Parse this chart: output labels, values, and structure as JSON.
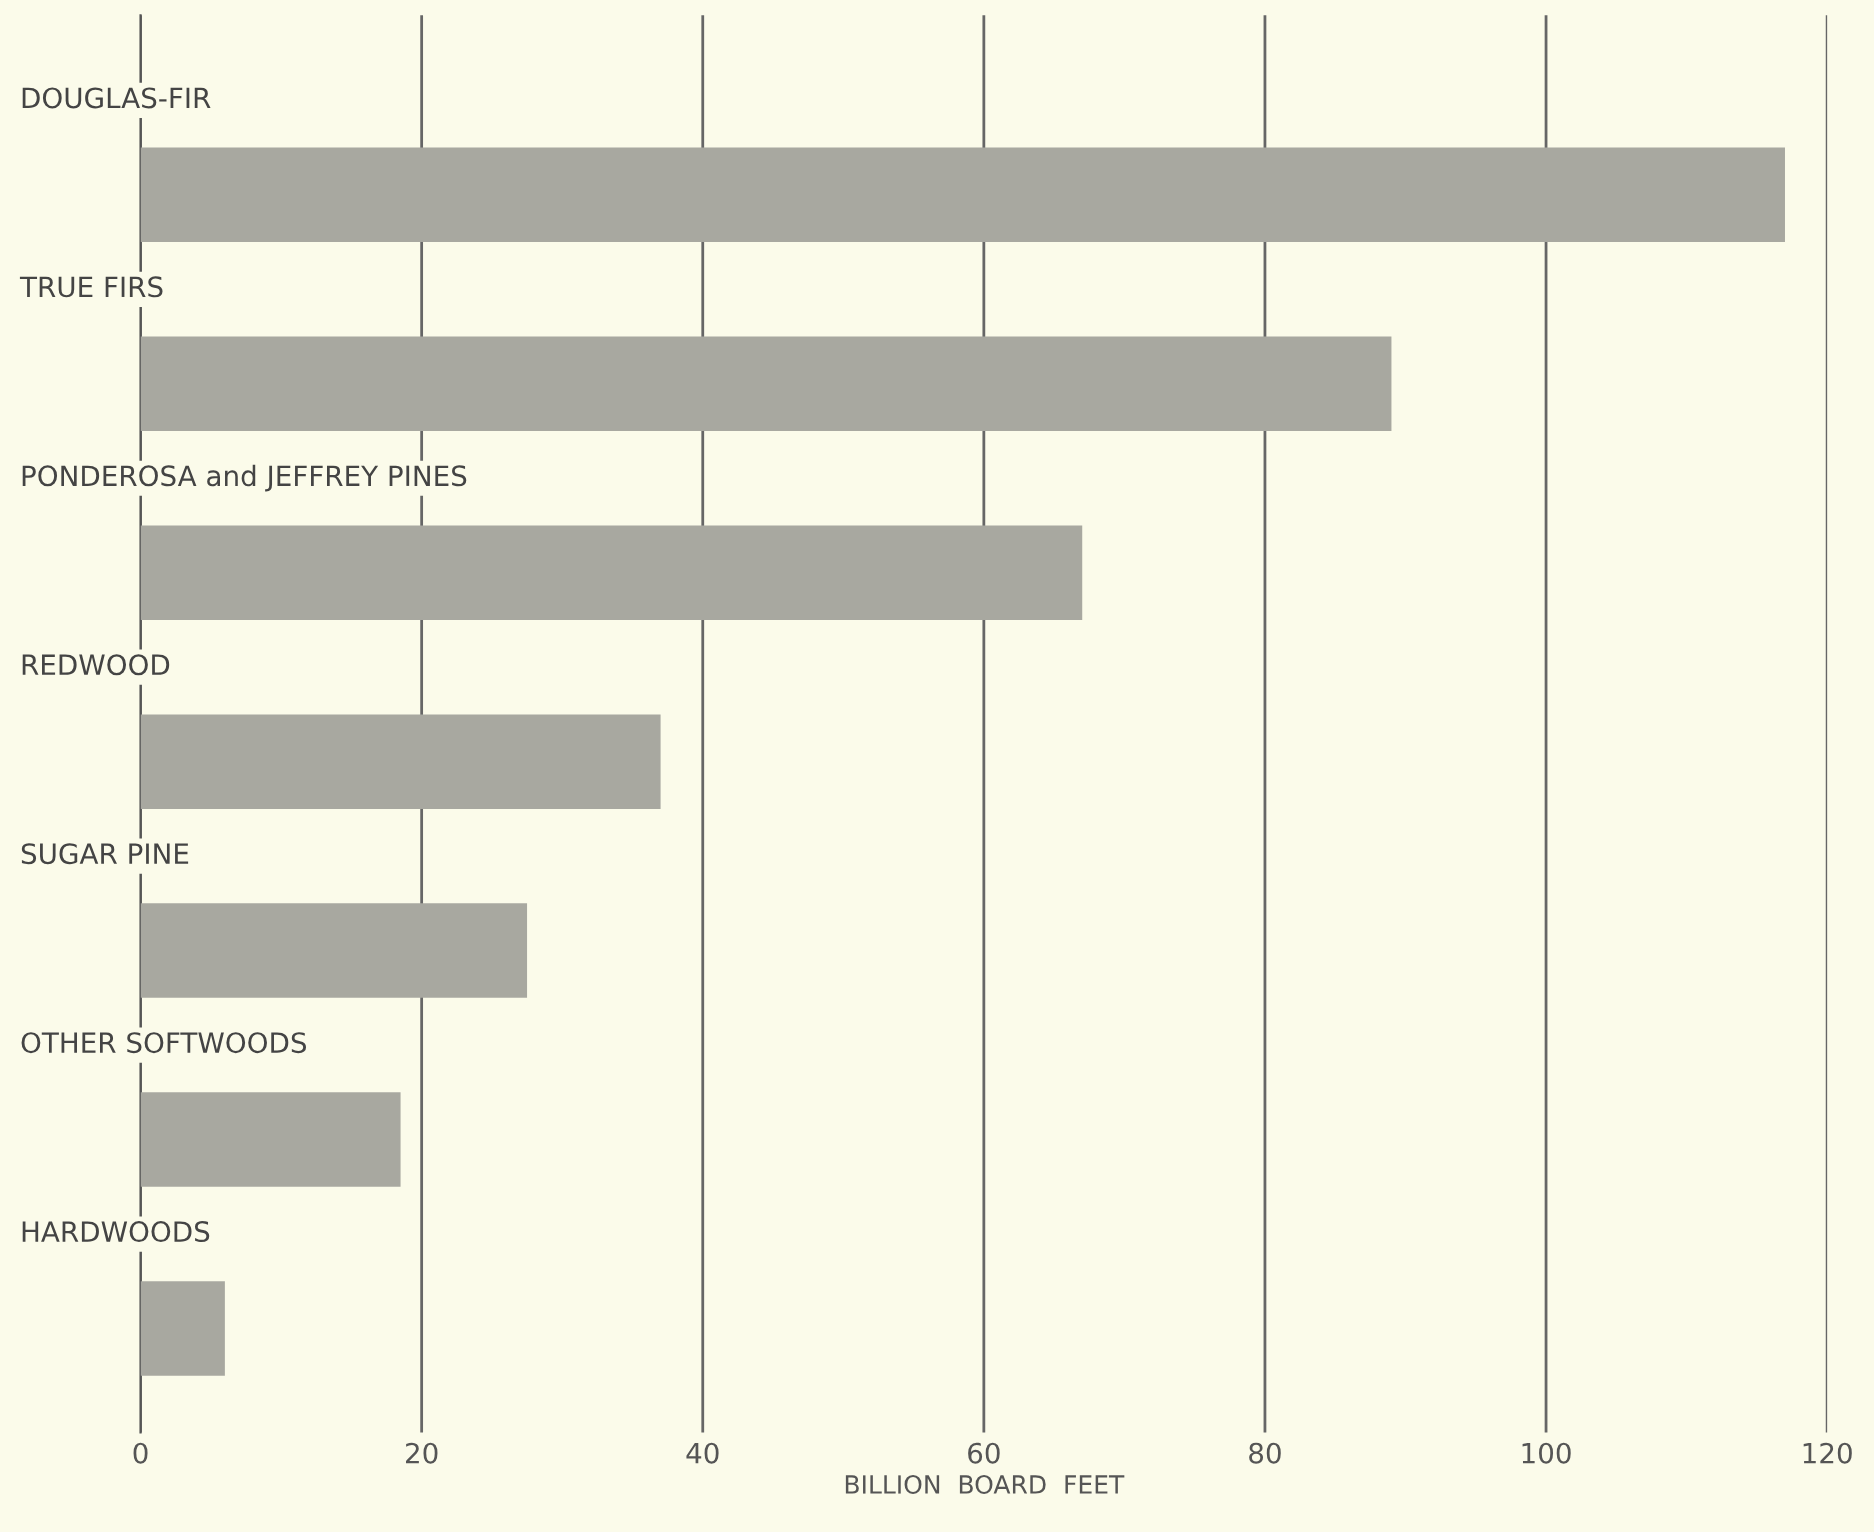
{
  "chart_data": {
    "type": "bar",
    "orientation": "horizontal",
    "xlabel": "BILLION  BOARD  FEET",
    "categories": [
      "DOUGLAS-FIR",
      "TRUE FIRS",
      "PONDEROSA and JEFFREY PINES",
      "REDWOOD",
      "SUGAR PINE",
      "OTHER SOFTWOODS",
      "HARDWOODS"
    ],
    "values": [
      117,
      89,
      67,
      37,
      27.5,
      18.5,
      6
    ],
    "color": "#a8a8a0",
    "xlim": [
      0,
      120
    ],
    "xticks": [
      0,
      20,
      40,
      60,
      80,
      100,
      120
    ],
    "grid": "x"
  }
}
